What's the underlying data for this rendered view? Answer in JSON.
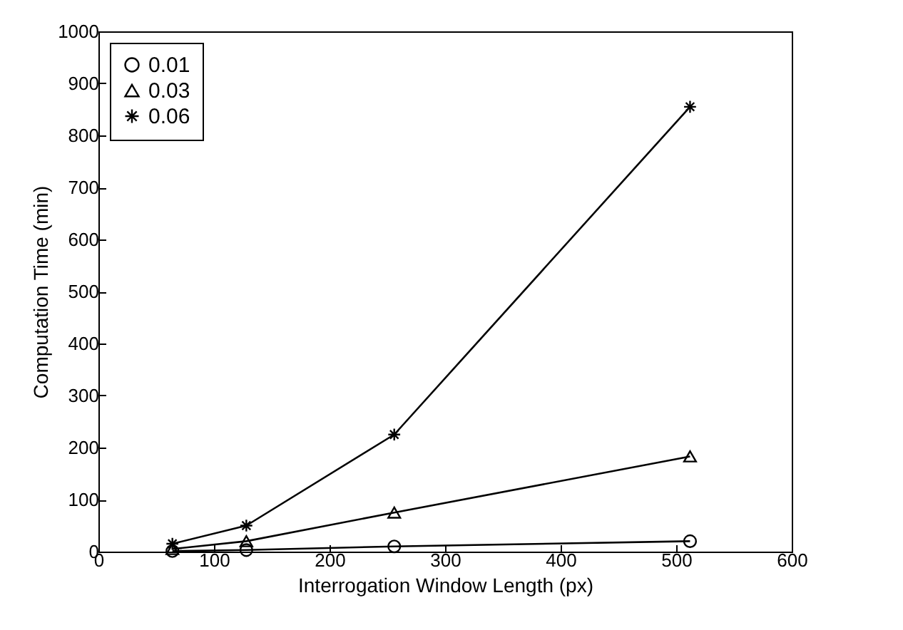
{
  "chart_data": {
    "type": "line",
    "xlabel": "Interrogation Window Length (px)",
    "ylabel": "Computation Time (min)",
    "x": [
      64,
      128,
      256,
      512
    ],
    "series": [
      {
        "name": "0.01",
        "color": "#000000",
        "marker": "circle",
        "values": [
          1,
          3,
          10,
          20
        ]
      },
      {
        "name": "0.03",
        "color": "#000000",
        "marker": "triangle",
        "values": [
          5,
          20,
          75,
          183
        ]
      },
      {
        "name": "0.06",
        "color": "#000000",
        "marker": "cross",
        "values": [
          15,
          50,
          225,
          855
        ]
      }
    ],
    "xlim": [
      0,
      600
    ],
    "xticks": [
      0,
      100,
      200,
      300,
      400,
      500,
      600
    ],
    "ylim": [
      0,
      1000
    ],
    "yticks": [
      0,
      100,
      200,
      300,
      400,
      500,
      600,
      700,
      800,
      900,
      1000
    ],
    "grid": false,
    "legend": "top left",
    "line_style": "solid"
  }
}
